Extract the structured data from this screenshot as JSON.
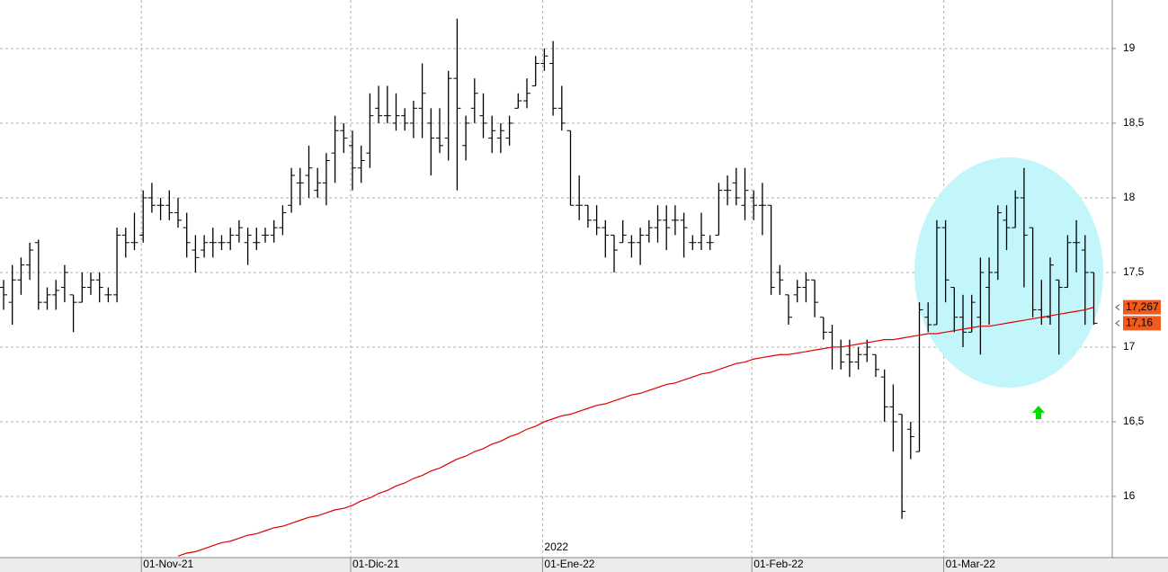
{
  "chart_data": {
    "type": "ohlc",
    "year_label": "2022",
    "categories": [
      null,
      null,
      null,
      null,
      null,
      null,
      null,
      null,
      null,
      null,
      null,
      null,
      null,
      null,
      null,
      null,
      "01-Nov-21",
      null,
      null,
      null,
      null,
      null,
      null,
      null,
      null,
      null,
      null,
      null,
      null,
      null,
      null,
      null,
      null,
      null,
      null,
      null,
      null,
      null,
      null,
      null,
      "01-Dic-21",
      null,
      null,
      null,
      null,
      null,
      null,
      null,
      null,
      null,
      null,
      null,
      null,
      null,
      null,
      null,
      null,
      null,
      null,
      null,
      null,
      null,
      "01-Ene-22",
      null,
      null,
      null,
      null,
      null,
      null,
      null,
      null,
      null,
      null,
      null,
      null,
      null,
      null,
      null,
      null,
      null,
      null,
      null,
      null,
      null,
      null,
      null,
      "01-Feb-22",
      null,
      null,
      null,
      null,
      null,
      null,
      null,
      null,
      null,
      null,
      null,
      null,
      null,
      null,
      null,
      null,
      null,
      null,
      null,
      null,
      null,
      "01-Mar-22",
      null,
      null,
      null,
      null,
      null,
      null,
      null,
      null,
      null,
      null,
      null,
      null,
      null,
      null,
      null,
      null,
      null
    ],
    "price": {
      "color": "#000000",
      "last_value_label": "17,16",
      "label_color": "#f05a1e",
      "ohlc": [
        [
          17.4,
          17.45,
          17.25,
          17.35
        ],
        [
          17.3,
          17.55,
          17.15,
          17.45
        ],
        [
          17.45,
          17.6,
          17.35,
          17.55
        ],
        [
          17.55,
          17.7,
          17.45,
          17.65
        ],
        [
          17.7,
          17.72,
          17.25,
          17.3
        ],
        [
          17.3,
          17.4,
          17.25,
          17.35
        ],
        [
          17.35,
          17.45,
          17.25,
          17.38
        ],
        [
          17.4,
          17.55,
          17.3,
          17.5
        ],
        [
          17.35,
          17.35,
          17.1,
          17.3
        ],
        [
          17.3,
          17.5,
          17.3,
          17.4
        ],
        [
          17.4,
          17.5,
          17.35,
          17.45
        ],
        [
          17.45,
          17.5,
          17.3,
          17.4
        ],
        [
          17.35,
          17.4,
          17.3,
          17.35
        ],
        [
          17.35,
          17.8,
          17.3,
          17.75
        ],
        [
          17.75,
          17.8,
          17.6,
          17.7
        ],
        [
          17.7,
          17.9,
          17.65,
          17.7
        ],
        [
          17.75,
          18.05,
          17.7,
          18.0
        ],
        [
          18.0,
          18.1,
          17.9,
          17.95
        ],
        [
          17.95,
          18.0,
          17.85,
          17.95
        ],
        [
          17.95,
          18.05,
          17.85,
          17.9
        ],
        [
          17.9,
          18.0,
          17.8,
          17.85
        ],
        [
          17.8,
          17.9,
          17.6,
          17.7
        ],
        [
          17.65,
          17.75,
          17.5,
          17.6
        ],
        [
          17.65,
          17.75,
          17.6,
          17.7
        ],
        [
          17.7,
          17.8,
          17.6,
          17.7
        ],
        [
          17.7,
          17.75,
          17.65,
          17.7
        ],
        [
          17.7,
          17.8,
          17.65,
          17.75
        ],
        [
          17.75,
          17.85,
          17.7,
          17.8
        ],
        [
          17.7,
          17.8,
          17.55,
          17.75
        ],
        [
          17.7,
          17.8,
          17.65,
          17.7
        ],
        [
          17.75,
          17.8,
          17.7,
          17.75
        ],
        [
          17.75,
          17.85,
          17.7,
          17.8
        ],
        [
          17.8,
          17.95,
          17.75,
          17.9
        ],
        [
          17.95,
          18.2,
          17.9,
          18.15
        ],
        [
          18.1,
          18.2,
          17.95,
          18.1
        ],
        [
          18.15,
          18.35,
          18.0,
          18.2
        ],
        [
          18.05,
          18.2,
          18.0,
          18.1
        ],
        [
          18.1,
          18.3,
          17.95,
          18.25
        ],
        [
          18.3,
          18.55,
          18.1,
          18.45
        ],
        [
          18.45,
          18.5,
          18.3,
          18.4
        ],
        [
          18.35,
          18.45,
          18.05,
          18.2
        ],
        [
          18.2,
          18.35,
          18.1,
          18.25
        ],
        [
          18.3,
          18.7,
          18.2,
          18.55
        ],
        [
          18.6,
          18.75,
          18.5,
          18.55
        ],
        [
          18.55,
          18.75,
          18.5,
          18.55
        ],
        [
          18.5,
          18.7,
          18.45,
          18.55
        ],
        [
          18.55,
          18.6,
          18.45,
          18.5
        ],
        [
          18.5,
          18.65,
          18.4,
          18.6
        ],
        [
          18.6,
          18.9,
          18.4,
          18.7
        ],
        [
          18.5,
          18.6,
          18.15,
          18.4
        ],
        [
          18.4,
          18.6,
          18.3,
          18.35
        ],
        [
          18.4,
          18.85,
          18.25,
          18.8
        ],
        [
          18.8,
          19.2,
          18.05,
          18.6
        ],
        [
          18.35,
          18.55,
          18.25,
          18.5
        ],
        [
          18.6,
          18.8,
          18.5,
          18.7
        ],
        [
          18.55,
          18.7,
          18.4,
          18.5
        ],
        [
          18.4,
          18.55,
          18.3,
          18.45
        ],
        [
          18.4,
          18.5,
          18.3,
          18.45
        ],
        [
          18.4,
          18.55,
          18.35,
          18.5
        ],
        [
          18.6,
          18.7,
          18.6,
          18.65
        ],
        [
          18.65,
          18.8,
          18.6,
          18.7
        ],
        [
          18.75,
          18.95,
          18.75,
          18.9
        ],
        [
          18.9,
          19.0,
          18.85,
          18.95
        ],
        [
          18.9,
          19.05,
          18.55,
          18.6
        ],
        [
          18.6,
          18.75,
          18.45,
          18.5
        ],
        [
          18.45,
          18.45,
          17.95,
          17.95
        ],
        [
          17.95,
          18.15,
          17.85,
          17.95
        ],
        [
          17.95,
          17.95,
          17.8,
          17.85
        ],
        [
          17.85,
          17.95,
          17.75,
          17.8
        ],
        [
          17.8,
          17.85,
          17.6,
          17.75
        ],
        [
          17.75,
          17.75,
          17.5,
          17.65
        ],
        [
          17.7,
          17.85,
          17.7,
          17.75
        ],
        [
          17.7,
          17.75,
          17.6,
          17.7
        ],
        [
          17.7,
          17.8,
          17.55,
          17.75
        ],
        [
          17.75,
          17.85,
          17.7,
          17.8
        ],
        [
          17.8,
          17.95,
          17.7,
          17.85
        ],
        [
          17.85,
          17.95,
          17.65,
          17.8
        ],
        [
          17.85,
          17.95,
          17.75,
          17.85
        ],
        [
          17.85,
          17.9,
          17.6,
          17.8
        ],
        [
          17.7,
          17.75,
          17.65,
          17.7
        ],
        [
          17.7,
          17.9,
          17.65,
          17.75
        ],
        [
          17.7,
          17.75,
          17.65,
          17.7
        ],
        [
          17.75,
          18.1,
          17.75,
          18.05
        ],
        [
          18.05,
          18.15,
          17.95,
          18.05
        ],
        [
          18.1,
          18.2,
          17.95,
          18.0
        ],
        [
          17.95,
          18.2,
          17.85,
          18.05
        ],
        [
          18.0,
          18.05,
          17.85,
          17.95
        ],
        [
          17.95,
          18.1,
          17.75,
          17.95
        ],
        [
          17.95,
          17.95,
          17.35,
          17.4
        ],
        [
          17.5,
          17.55,
          17.35,
          17.45
        ],
        [
          17.35,
          17.35,
          17.15,
          17.2
        ],
        [
          17.35,
          17.45,
          17.3,
          17.4
        ],
        [
          17.4,
          17.5,
          17.3,
          17.45
        ],
        [
          17.45,
          17.45,
          17.2,
          17.3
        ],
        [
          17.2,
          17.2,
          17.05,
          17.1
        ],
        [
          17.1,
          17.15,
          16.85,
          17.0
        ],
        [
          17.0,
          17.05,
          16.85,
          16.9
        ],
        [
          16.95,
          17.05,
          16.8,
          16.9
        ],
        [
          16.9,
          17.0,
          16.85,
          16.95
        ],
        [
          16.95,
          17.05,
          16.9,
          17.0
        ],
        [
          16.95,
          16.95,
          16.8,
          16.85
        ],
        [
          16.8,
          16.85,
          16.5,
          16.6
        ],
        [
          16.6,
          16.75,
          16.3,
          16.5
        ],
        [
          16.55,
          16.55,
          15.85,
          15.9
        ],
        [
          16.45,
          16.5,
          16.25,
          16.4
        ],
        [
          16.3,
          17.3,
          16.3,
          17.25
        ],
        [
          17.2,
          17.3,
          17.1,
          17.15
        ],
        [
          17.15,
          17.85,
          17.15,
          17.8
        ],
        [
          17.8,
          17.85,
          17.3,
          17.45
        ],
        [
          17.4,
          17.4,
          17.1,
          17.2
        ],
        [
          17.2,
          17.35,
          17.0,
          17.1
        ],
        [
          17.1,
          17.35,
          17.1,
          17.3
        ],
        [
          17.2,
          17.6,
          16.95,
          17.5
        ],
        [
          17.4,
          17.6,
          17.15,
          17.5
        ],
        [
          17.5,
          17.95,
          17.45,
          17.9
        ],
        [
          17.85,
          17.95,
          17.65,
          17.8
        ],
        [
          17.8,
          18.05,
          17.8,
          18.0
        ],
        [
          18.0,
          18.2,
          17.4,
          17.75
        ],
        [
          17.8,
          17.8,
          17.2,
          17.25
        ],
        [
          17.25,
          17.45,
          17.15,
          17.2
        ],
        [
          17.2,
          17.6,
          17.15,
          17.55
        ],
        [
          17.45,
          17.45,
          16.95,
          17.4
        ],
        [
          17.4,
          17.75,
          17.4,
          17.7
        ],
        [
          17.7,
          17.85,
          17.5,
          17.7
        ],
        [
          17.65,
          17.75,
          17.15,
          17.5
        ],
        [
          17.5,
          17.5,
          17.15,
          17.16
        ]
      ]
    },
    "moving_average": {
      "color": "#e00000",
      "last_value_label": "17,267",
      "label_color": "#f05a1e",
      "values": [
        null,
        null,
        null,
        null,
        null,
        null,
        null,
        null,
        null,
        null,
        null,
        null,
        null,
        null,
        null,
        null,
        null,
        null,
        null,
        null,
        15.6,
        15.62,
        15.63,
        15.65,
        15.67,
        15.69,
        15.7,
        15.72,
        15.74,
        15.75,
        15.77,
        15.79,
        15.8,
        15.82,
        15.84,
        15.86,
        15.87,
        15.89,
        15.91,
        15.92,
        15.94,
        15.97,
        15.99,
        16.02,
        16.04,
        16.07,
        16.09,
        16.12,
        16.14,
        16.17,
        16.19,
        16.22,
        16.25,
        16.27,
        16.3,
        16.32,
        16.35,
        16.37,
        16.4,
        16.42,
        16.45,
        16.47,
        16.5,
        16.52,
        16.54,
        16.55,
        16.57,
        16.59,
        16.61,
        16.62,
        16.64,
        16.66,
        16.68,
        16.69,
        16.71,
        16.73,
        16.75,
        16.76,
        16.78,
        16.8,
        16.82,
        16.83,
        16.85,
        16.87,
        16.89,
        16.9,
        16.92,
        16.93,
        16.94,
        16.95,
        16.95,
        16.96,
        16.97,
        16.98,
        16.99,
        17.0,
        17.0,
        17.01,
        17.02,
        17.03,
        17.04,
        17.05,
        17.05,
        17.06,
        17.07,
        17.08,
        17.09,
        17.09,
        17.1,
        17.11,
        17.12,
        17.13,
        17.14,
        17.14,
        17.15,
        17.16,
        17.17,
        17.18,
        17.19,
        17.2,
        17.21,
        17.22,
        17.23,
        17.24,
        17.25,
        17.267
      ]
    },
    "ylim": [
      15.59,
      19.325
    ],
    "yticks": [
      16,
      {
        "value": 16.5,
        "label": "16,5"
      },
      17,
      {
        "value": 17.5,
        "label": "17,5"
      },
      18,
      {
        "value": 18.5,
        "label": "18,5"
      },
      19
    ],
    "grid": true
  }
}
